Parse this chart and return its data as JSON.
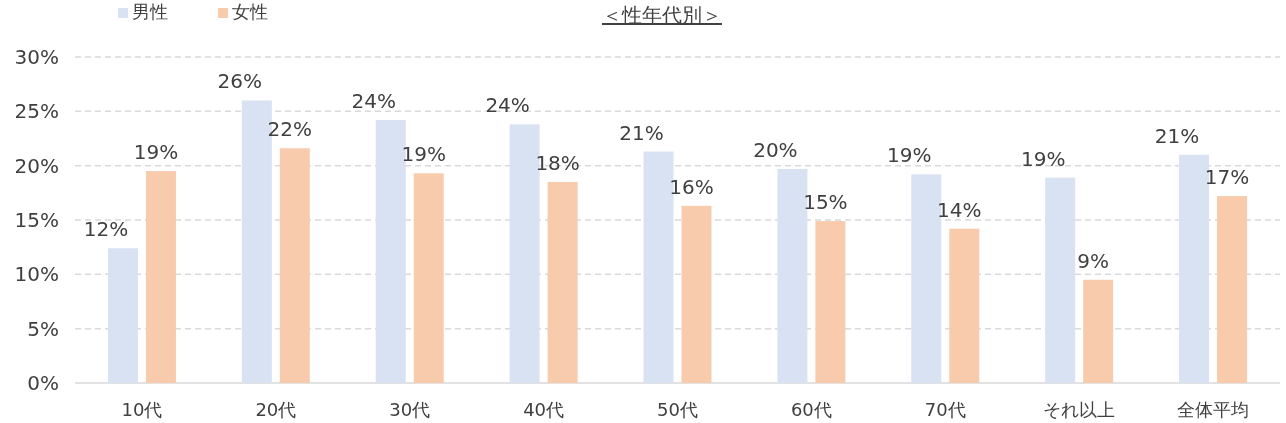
{
  "chart_data": {
    "type": "bar",
    "title": "＜性年代別＞",
    "categories": [
      "10代",
      "20代",
      "30代",
      "40代",
      "50代",
      "60代",
      "70代",
      "それ以上",
      "全体平均"
    ],
    "series": [
      {
        "name": "男性",
        "color": "#d9e2f3",
        "values": [
          12.4,
          26.0,
          24.2,
          23.8,
          21.3,
          19.7,
          19.2,
          18.9,
          21.0
        ],
        "value_labels": [
          "12%",
          "26%",
          "24%",
          "24%",
          "21%",
          "20%",
          "19%",
          "19%",
          "21%"
        ]
      },
      {
        "name": "女性",
        "color": "#f8cbad",
        "values": [
          19.5,
          21.6,
          19.3,
          18.5,
          16.3,
          14.9,
          14.2,
          9.5,
          17.2
        ],
        "value_labels": [
          "19%",
          "22%",
          "19%",
          "18%",
          "16%",
          "15%",
          "14%",
          "9%",
          "17%"
        ]
      }
    ],
    "ylim": [
      0,
      30
    ],
    "yticks": [
      {
        "value": 0,
        "label": "0%"
      },
      {
        "value": 5,
        "label": "5%"
      },
      {
        "value": 10,
        "label": "10%"
      },
      {
        "value": 15,
        "label": "15%"
      },
      {
        "value": 20,
        "label": "20%"
      },
      {
        "value": 25,
        "label": "25%"
      },
      {
        "value": 30,
        "label": "30%"
      }
    ],
    "grid": "y",
    "legend": "top left"
  }
}
